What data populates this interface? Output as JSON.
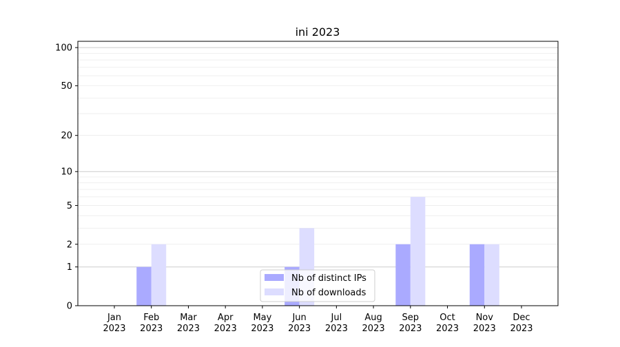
{
  "chart_data": {
    "type": "bar",
    "title": "ini 2023",
    "xlabel": "",
    "ylabel": "",
    "y_scale": "log(1+y)",
    "ylim": [
      0,
      112
    ],
    "yticks": [
      0,
      1,
      2,
      5,
      10,
      20,
      50,
      100
    ],
    "grid": true,
    "legend_position": "lower-center",
    "categories": [
      "Jan\n2023",
      "Feb\n2023",
      "Mar\n2023",
      "Apr\n2023",
      "May\n2023",
      "Jun\n2023",
      "Jul\n2023",
      "Aug\n2023",
      "Sep\n2023",
      "Oct\n2023",
      "Nov\n2023",
      "Dec\n2023"
    ],
    "series": [
      {
        "name": "Nb of distinct IPs",
        "color": "#aaaaff",
        "values": [
          0,
          1,
          0,
          0,
          0,
          1,
          0,
          0,
          2,
          0,
          2,
          0
        ]
      },
      {
        "name": "Nb of downloads",
        "color": "#ddddff",
        "values": [
          0,
          2,
          0,
          0,
          0,
          3,
          0,
          0,
          6,
          0,
          2,
          0
        ]
      }
    ]
  }
}
